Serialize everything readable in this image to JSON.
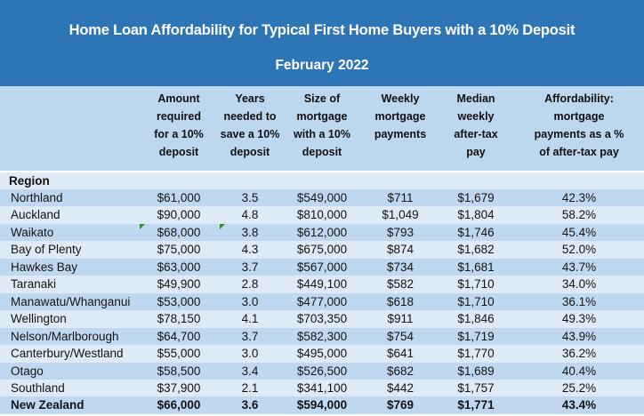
{
  "banner": {
    "title": "Home Loan Affordability for Typical First Home Buyers with a 10% Deposit",
    "subtitle": "February 2022",
    "background_color": "#2E75B6",
    "text_color": "#FFFFFF"
  },
  "colors": {
    "header_band": "#BDD7EE",
    "stripe_dark": "#BFD8EF",
    "stripe_light": "#DEEAF6",
    "error_indicator_green": "#2E8B2E"
  },
  "chart_data": {
    "type": "table",
    "title": "Home Loan Affordability for Typical First Home Buyers with a 10% Deposit",
    "subtitle": "February 2022",
    "region_column_label": "Region",
    "column_headers": [
      "Amount\nrequired\nfor a 10%\ndeposit",
      "Years\nneeded to\nsave a 10%\ndeposit",
      "Size of\nmortgage\nwith a 10%\ndeposit",
      "Weekly\nmortgage\npayments",
      "Median\nweekly\nafter-tax\npay",
      "Affordability:\nmortgage\npayments as a %\nof after-tax pay"
    ],
    "rows": [
      {
        "region": "Northland",
        "amount": "$61,000",
        "years": "3.5",
        "size": "$549,000",
        "weekly": "$711",
        "median": "$1,679",
        "affordability": "42.3%"
      },
      {
        "region": "Auckland",
        "amount": "$90,000",
        "years": "4.8",
        "size": "$810,000",
        "weekly": "$1,049",
        "median": "$1,804",
        "affordability": "58.2%"
      },
      {
        "region": "Waikato",
        "amount": "$68,000",
        "years": "3.8",
        "size": "$612,000",
        "weekly": "$793",
        "median": "$1,746",
        "affordability": "45.4%"
      },
      {
        "region": "Bay of Plenty",
        "amount": "$75,000",
        "years": "4.3",
        "size": "$675,000",
        "weekly": "$874",
        "median": "$1,682",
        "affordability": "52.0%"
      },
      {
        "region": "Hawkes Bay",
        "amount": "$63,000",
        "years": "3.7",
        "size": "$567,000",
        "weekly": "$734",
        "median": "$1,681",
        "affordability": "43.7%"
      },
      {
        "region": "Taranaki",
        "amount": "$49,900",
        "years": "2.8",
        "size": "$449,100",
        "weekly": "$582",
        "median": "$1,710",
        "affordability": "34.0%"
      },
      {
        "region": "Manawatu/Whanganui",
        "amount": "$53,000",
        "years": "3.0",
        "size": "$477,000",
        "weekly": "$618",
        "median": "$1,710",
        "affordability": "36.1%"
      },
      {
        "region": "Wellington",
        "amount": "$78,150",
        "years": "4.1",
        "size": "$703,350",
        "weekly": "$911",
        "median": "$1,846",
        "affordability": "49.3%"
      },
      {
        "region": "Nelson/Marlborough",
        "amount": "$64,700",
        "years": "3.7",
        "size": "$582,300",
        "weekly": "$754",
        "median": "$1,719",
        "affordability": "43.9%"
      },
      {
        "region": "Canterbury/Westland",
        "amount": "$55,000",
        "years": "3.0",
        "size": "$495,000",
        "weekly": "$641",
        "median": "$1,770",
        "affordability": "36.2%"
      },
      {
        "region": "Otago",
        "amount": "$58,500",
        "years": "3.4",
        "size": "$526,500",
        "weekly": "$682",
        "median": "$1,689",
        "affordability": "40.4%"
      },
      {
        "region": "Southland",
        "amount": "$37,900",
        "years": "2.1",
        "size": "$341,100",
        "weekly": "$442",
        "median": "$1,757",
        "affordability": "25.2%"
      },
      {
        "region": "New Zealand",
        "amount": "$66,000",
        "years": "3.6",
        "size": "$594,000",
        "weekly": "$769",
        "median": "$1,771",
        "affordability": "43.4%"
      }
    ],
    "annotations": {
      "excel_error_indicator_cells": [
        "Waikato.amount",
        "Waikato.years"
      ],
      "bold_total_row": "New Zealand"
    },
    "layout": {
      "striped": true,
      "gridlines": false,
      "numeric_alignment": "center"
    }
  }
}
